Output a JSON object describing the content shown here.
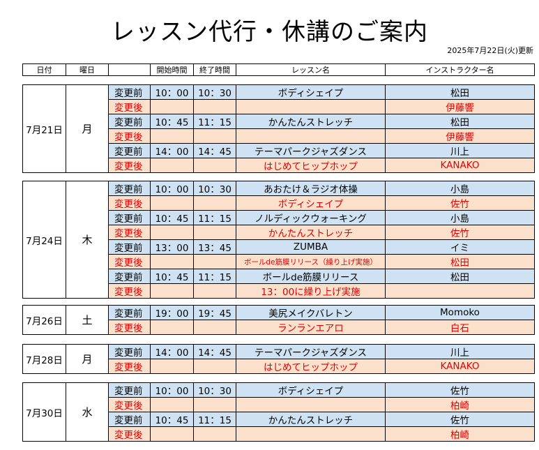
{
  "title": "レッスン代行・休講のご案内",
  "updated": "2025年7月22日(火)更新",
  "headers": [
    "日付",
    "曜日",
    "",
    "開始時間",
    "終了時間",
    "レッスン名",
    "インストラクター名"
  ],
  "groups": [
    {
      "date": "7月21日",
      "dow": "月",
      "rows": [
        {
          "label": "変更前",
          "start": "10：00",
          "end": "10：30",
          "lesson": "ボディシェイプ",
          "instructor": "松田"
        },
        {
          "label": "変更後",
          "start": "",
          "end": "",
          "lesson": "",
          "instructor": "伊藤響"
        },
        {
          "label": "変更前",
          "start": "10：45",
          "end": "11：15",
          "lesson": "かんたんストレッチ",
          "instructor": "松田"
        },
        {
          "label": "変更後",
          "start": "",
          "end": "",
          "lesson": "",
          "instructor": "伊藤響"
        },
        {
          "label": "変更前",
          "start": "14：00",
          "end": "14：45",
          "lesson": "テーマパークジャズダンス",
          "instructor": "川上"
        },
        {
          "label": "変更後",
          "start": "",
          "end": "",
          "lesson": "はじめてヒップホップ",
          "instructor": "KANAKO"
        }
      ]
    },
    {
      "date": "7月24日",
      "dow": "木",
      "rows": [
        {
          "label": "変更前",
          "start": "10：00",
          "end": "10：30",
          "lesson": "あおたけ＆ラジオ体操",
          "instructor": "小島"
        },
        {
          "label": "変更後",
          "start": "",
          "end": "",
          "lesson": "ボディシェイプ",
          "instructor": "佐竹"
        },
        {
          "label": "変更前",
          "start": "10：45",
          "end": "11：15",
          "lesson": "ノルディックウォーキング",
          "instructor": "小島"
        },
        {
          "label": "変更後",
          "start": "",
          "end": "",
          "lesson": "かんたんストレッチ",
          "instructor": "佐竹"
        },
        {
          "label": "変更前",
          "start": "13：00",
          "end": "13：45",
          "lesson": "ZUMBA",
          "instructor": "イミ"
        },
        {
          "label": "変更後",
          "start": "",
          "end": "",
          "lesson": "ボールde筋膜リリース（繰り上げ実施）",
          "instructor": "松田",
          "small": true
        },
        {
          "label": "変更前",
          "start": "10：45",
          "end": "11：15",
          "lesson": "ボールde筋膜リリース",
          "instructor": "松田"
        },
        {
          "label": "変更後",
          "start": "",
          "end": "",
          "lesson": "13：00に繰り上げ実施",
          "instructor": ""
        }
      ]
    },
    {
      "date": "7月26日",
      "dow": "土",
      "rows": [
        {
          "label": "変更前",
          "start": "19：00",
          "end": "19：45",
          "lesson": "美尻メイクバレトン",
          "instructor": "Momoko"
        },
        {
          "label": "変更後",
          "start": "",
          "end": "",
          "lesson": "ランランエアロ",
          "instructor": "白石"
        }
      ]
    },
    {
      "date": "7月28日",
      "dow": "月",
      "rows": [
        {
          "label": "変更前",
          "start": "14：00",
          "end": "14：45",
          "lesson": "テーマパークジャズダンス",
          "instructor": "川上"
        },
        {
          "label": "変更後",
          "start": "",
          "end": "",
          "lesson": "はじめてヒップホップ",
          "instructor": "KANAKO"
        }
      ]
    },
    {
      "date": "7月30日",
      "dow": "水",
      "rows": [
        {
          "label": "変更前",
          "start": "10：00",
          "end": "10：30",
          "lesson": "ボディシェイプ",
          "instructor": "佐竹"
        },
        {
          "label": "変更後",
          "start": "",
          "end": "",
          "lesson": "",
          "instructor": "柏崎"
        },
        {
          "label": "変更前",
          "start": "10：45",
          "end": "11：15",
          "lesson": "かんたんストレッチ",
          "instructor": "佐竹"
        },
        {
          "label": "変更後",
          "start": "",
          "end": "",
          "lesson": "",
          "instructor": "柏崎"
        }
      ]
    }
  ],
  "colors": {
    "before_bg": "#cfe2f3",
    "after_bg": "#fbe0cc",
    "after_text": "#e00000"
  }
}
